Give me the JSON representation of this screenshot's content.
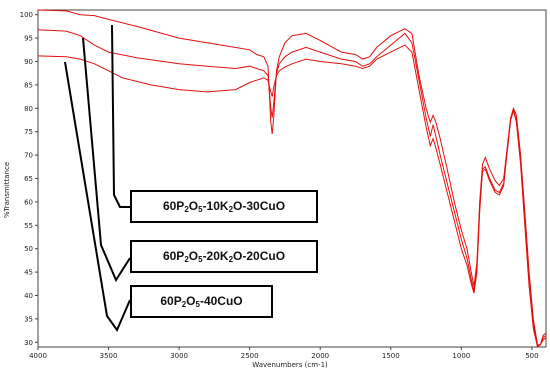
{
  "chart_data": {
    "type": "line",
    "title": "",
    "xlabel": "Wavenumbers (cm-1)",
    "ylabel": "%Transmittance",
    "xlim": [
      4000,
      400
    ],
    "ylim": [
      29,
      101
    ],
    "x_ticks": [
      "4000",
      "3500",
      "3000",
      "2500",
      "2000",
      "1500",
      "1000",
      "500"
    ],
    "y_ticks": [
      "30",
      "35",
      "40",
      "45",
      "50",
      "55",
      "60",
      "65",
      "70",
      "75",
      "80",
      "85",
      "90",
      "95",
      "100"
    ],
    "grid": false,
    "line_color": "#e01010",
    "legend_labels": [
      "60P2O5-10K2O-30CuO",
      "60P2O5-20K2O-20CuO",
      "60P2O5-40CuO"
    ],
    "series": [
      {
        "name": "60P2O5-10K2O-30CuO",
        "points": [
          [
            4000,
            101.0
          ],
          [
            3800,
            100.8
          ],
          [
            3700,
            100.0
          ],
          [
            3600,
            99.8
          ],
          [
            3500,
            99.0
          ],
          [
            3300,
            97.5
          ],
          [
            3000,
            95.0
          ],
          [
            2700,
            93.5
          ],
          [
            2500,
            92.5
          ],
          [
            2450,
            91.5
          ],
          [
            2400,
            91.0
          ],
          [
            2370,
            89.0
          ],
          [
            2350,
            77.0
          ],
          [
            2340,
            74.5
          ],
          [
            2330,
            78.0
          ],
          [
            2310,
            88.0
          ],
          [
            2290,
            91.0
          ],
          [
            2250,
            94.0
          ],
          [
            2200,
            95.5
          ],
          [
            2100,
            96.0
          ],
          [
            2000,
            94.5
          ],
          [
            1850,
            92.0
          ],
          [
            1750,
            91.5
          ],
          [
            1700,
            90.5
          ],
          [
            1650,
            91.0
          ],
          [
            1600,
            93.0
          ],
          [
            1500,
            95.5
          ],
          [
            1400,
            97.0
          ],
          [
            1350,
            96.0
          ],
          [
            1300,
            87.0
          ],
          [
            1250,
            80.0
          ],
          [
            1220,
            77.0
          ],
          [
            1200,
            78.5
          ],
          [
            1180,
            77.0
          ],
          [
            1150,
            73.5
          ],
          [
            1100,
            67.0
          ],
          [
            1050,
            60.0
          ],
          [
            1000,
            54.0
          ],
          [
            960,
            50.0
          ],
          [
            930,
            45.0
          ],
          [
            910,
            42.0
          ],
          [
            890,
            47.0
          ],
          [
            870,
            60.0
          ],
          [
            850,
            68.0
          ],
          [
            830,
            69.5
          ],
          [
            800,
            67.0
          ],
          [
            760,
            64.5
          ],
          [
            730,
            63.5
          ],
          [
            700,
            65.0
          ],
          [
            670,
            73.0
          ],
          [
            650,
            78.0
          ],
          [
            630,
            80.0
          ],
          [
            610,
            78.5
          ],
          [
            580,
            70.0
          ],
          [
            550,
            58.0
          ],
          [
            520,
            45.0
          ],
          [
            490,
            35.0
          ],
          [
            460,
            29.5
          ],
          [
            440,
            29.5
          ],
          [
            420,
            31.5
          ],
          [
            400,
            32.0
          ]
        ]
      },
      {
        "name": "60P2O5-20K2O-20CuO",
        "points": [
          [
            4000,
            96.8
          ],
          [
            3800,
            96.5
          ],
          [
            3700,
            95.5
          ],
          [
            3600,
            93.5
          ],
          [
            3500,
            92.0
          ],
          [
            3300,
            90.8
          ],
          [
            3000,
            89.5
          ],
          [
            2800,
            89.0
          ],
          [
            2600,
            88.5
          ],
          [
            2500,
            89.0
          ],
          [
            2450,
            88.5
          ],
          [
            2400,
            88.0
          ],
          [
            2370,
            87.0
          ],
          [
            2350,
            80.0
          ],
          [
            2340,
            78.0
          ],
          [
            2330,
            81.0
          ],
          [
            2310,
            87.5
          ],
          [
            2290,
            89.5
          ],
          [
            2250,
            91.0
          ],
          [
            2200,
            92.0
          ],
          [
            2100,
            93.0
          ],
          [
            2000,
            92.0
          ],
          [
            1850,
            90.5
          ],
          [
            1750,
            90.0
          ],
          [
            1700,
            89.0
          ],
          [
            1650,
            89.5
          ],
          [
            1600,
            91.0
          ],
          [
            1500,
            93.5
          ],
          [
            1400,
            96.0
          ],
          [
            1350,
            94.0
          ],
          [
            1300,
            86.0
          ],
          [
            1250,
            78.0
          ],
          [
            1220,
            74.0
          ],
          [
            1200,
            76.5
          ],
          [
            1180,
            74.0
          ],
          [
            1150,
            70.0
          ],
          [
            1100,
            64.0
          ],
          [
            1050,
            58.0
          ],
          [
            1000,
            52.0
          ],
          [
            960,
            48.0
          ],
          [
            930,
            43.5
          ],
          [
            910,
            41.0
          ],
          [
            890,
            46.0
          ],
          [
            870,
            59.0
          ],
          [
            850,
            67.0
          ],
          [
            830,
            67.5
          ],
          [
            800,
            65.0
          ],
          [
            760,
            62.5
          ],
          [
            730,
            62.0
          ],
          [
            700,
            64.0
          ],
          [
            670,
            72.0
          ],
          [
            650,
            77.5
          ],
          [
            630,
            79.5
          ],
          [
            610,
            77.5
          ],
          [
            580,
            69.0
          ],
          [
            550,
            57.0
          ],
          [
            520,
            44.0
          ],
          [
            490,
            34.0
          ],
          [
            460,
            29.3
          ],
          [
            440,
            29.5
          ],
          [
            420,
            31.0
          ],
          [
            400,
            31.5
          ]
        ]
      },
      {
        "name": "60P2O5-40CuO",
        "points": [
          [
            4000,
            91.2
          ],
          [
            3800,
            91.0
          ],
          [
            3700,
            90.5
          ],
          [
            3600,
            89.5
          ],
          [
            3500,
            88.0
          ],
          [
            3400,
            86.5
          ],
          [
            3200,
            85.0
          ],
          [
            3000,
            84.0
          ],
          [
            2800,
            83.5
          ],
          [
            2600,
            84.0
          ],
          [
            2500,
            85.5
          ],
          [
            2450,
            86.0
          ],
          [
            2400,
            86.5
          ],
          [
            2370,
            86.0
          ],
          [
            2350,
            83.5
          ],
          [
            2340,
            82.5
          ],
          [
            2330,
            84.5
          ],
          [
            2310,
            87.0
          ],
          [
            2290,
            88.0
          ],
          [
            2250,
            88.8
          ],
          [
            2200,
            89.5
          ],
          [
            2100,
            90.5
          ],
          [
            2000,
            90.0
          ],
          [
            1850,
            89.5
          ],
          [
            1750,
            89.0
          ],
          [
            1700,
            88.5
          ],
          [
            1650,
            89.0
          ],
          [
            1600,
            90.5
          ],
          [
            1500,
            92.0
          ],
          [
            1400,
            93.5
          ],
          [
            1350,
            92.0
          ],
          [
            1300,
            84.0
          ],
          [
            1250,
            76.0
          ],
          [
            1220,
            72.0
          ],
          [
            1200,
            73.5
          ],
          [
            1180,
            71.5
          ],
          [
            1150,
            68.0
          ],
          [
            1100,
            62.0
          ],
          [
            1050,
            56.0
          ],
          [
            1000,
            50.0
          ],
          [
            960,
            46.5
          ],
          [
            930,
            42.5
          ],
          [
            910,
            40.5
          ],
          [
            890,
            45.0
          ],
          [
            870,
            58.0
          ],
          [
            850,
            66.5
          ],
          [
            830,
            67.0
          ],
          [
            800,
            64.5
          ],
          [
            760,
            62.0
          ],
          [
            730,
            61.5
          ],
          [
            700,
            63.5
          ],
          [
            670,
            72.5
          ],
          [
            650,
            78.0
          ],
          [
            630,
            79.5
          ],
          [
            610,
            77.0
          ],
          [
            580,
            68.0
          ],
          [
            550,
            55.0
          ],
          [
            520,
            42.0
          ],
          [
            490,
            33.0
          ],
          [
            460,
            29.0
          ],
          [
            440,
            29.5
          ],
          [
            420,
            30.5
          ],
          [
            400,
            31.0
          ]
        ]
      }
    ]
  }
}
